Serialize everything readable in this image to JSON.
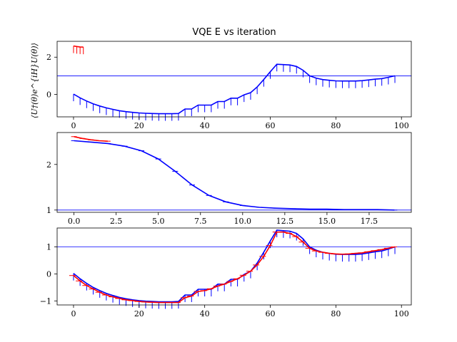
{
  "chart_data": [
    {
      "type": "line",
      "title": "VQE E vs iteration",
      "ylabel": "⟨U†(θ)e^{iH}U(θ)⟩",
      "xlim": [
        -5,
        103
      ],
      "ylim": [
        -1.2,
        2.85
      ],
      "xticks": [
        0,
        20,
        40,
        60,
        80,
        100
      ],
      "yticks": [
        0,
        2
      ],
      "hline": 1.0,
      "series": [
        {
          "color": "#0000ff",
          "x": [
            0,
            2,
            4,
            6,
            8,
            10,
            12,
            14,
            16,
            18,
            20,
            22,
            24,
            26,
            28,
            30,
            32,
            34,
            36,
            38,
            40,
            42,
            44,
            46,
            48,
            50,
            52,
            54,
            56,
            58,
            60,
            62,
            64,
            66,
            68,
            70,
            72,
            74,
            76,
            78,
            80,
            82,
            84,
            86,
            88,
            90,
            92,
            94,
            96,
            98
          ],
          "y": [
            0.02,
            -0.18,
            -0.35,
            -0.5,
            -0.62,
            -0.72,
            -0.8,
            -0.87,
            -0.92,
            -0.96,
            -0.99,
            -1.01,
            -1.02,
            -1.03,
            -1.03,
            -1.03,
            -1.02,
            -0.78,
            -0.78,
            -0.57,
            -0.57,
            -0.57,
            -0.38,
            -0.38,
            -0.2,
            -0.2,
            -0.02,
            0.1,
            0.4,
            0.8,
            1.22,
            1.62,
            1.6,
            1.58,
            1.5,
            1.3,
            1.0,
            0.88,
            0.8,
            0.76,
            0.73,
            0.72,
            0.72,
            0.72,
            0.74,
            0.78,
            0.82,
            0.85,
            0.92,
            1.0
          ]
        },
        {
          "color": "#ff0000",
          "x": [
            0,
            1,
            2,
            3
          ],
          "y": [
            2.6,
            2.57,
            2.55,
            2.54
          ]
        }
      ]
    },
    {
      "type": "line",
      "xlim": [
        -1,
        20
      ],
      "ylim": [
        0.95,
        2.7
      ],
      "xticks": [
        0.0,
        2.5,
        5.0,
        7.5,
        10.0,
        12.5,
        15.0,
        17.5
      ],
      "xtick_labels": [
        "0.0",
        "2.5",
        "5.0",
        "7.5",
        "10.0",
        "12.5",
        "15.0",
        "17.5"
      ],
      "yticks": [
        1,
        2
      ],
      "hline": 1.0,
      "series": [
        {
          "color": "#0000ff",
          "x": [
            0,
            1,
            2,
            3,
            4,
            5,
            6,
            7,
            8,
            9,
            10,
            11,
            12,
            13,
            14,
            15,
            16,
            17,
            18,
            19
          ],
          "y": [
            2.52,
            2.49,
            2.46,
            2.4,
            2.3,
            2.12,
            1.85,
            1.55,
            1.32,
            1.18,
            1.1,
            1.06,
            1.04,
            1.03,
            1.02,
            1.02,
            1.01,
            1.01,
            1.01,
            1.0
          ]
        },
        {
          "color": "#ff0000",
          "x": [
            0,
            0.5,
            1.0,
            1.5,
            2.0
          ],
          "y": [
            2.61,
            2.57,
            2.54,
            2.52,
            2.51
          ]
        }
      ]
    },
    {
      "type": "line",
      "xlim": [
        -5,
        103
      ],
      "ylim": [
        -1.15,
        1.7
      ],
      "xticks": [
        0,
        20,
        40,
        60,
        80,
        100
      ],
      "yticks": [
        -1,
        0,
        1
      ],
      "hline": 1.0,
      "series": [
        {
          "color": "#0000ff",
          "x": [
            0,
            2,
            4,
            6,
            8,
            10,
            12,
            14,
            16,
            18,
            20,
            22,
            24,
            26,
            28,
            30,
            32,
            34,
            36,
            38,
            40,
            42,
            44,
            46,
            48,
            50,
            52,
            54,
            56,
            58,
            60,
            62,
            64,
            66,
            68,
            70,
            72,
            74,
            76,
            78,
            80,
            82,
            84,
            86,
            88,
            90,
            92,
            94,
            96,
            98
          ],
          "y": [
            0.02,
            -0.18,
            -0.35,
            -0.5,
            -0.62,
            -0.72,
            -0.8,
            -0.87,
            -0.92,
            -0.96,
            -0.99,
            -1.01,
            -1.02,
            -1.03,
            -1.03,
            -1.03,
            -1.02,
            -0.78,
            -0.78,
            -0.57,
            -0.57,
            -0.57,
            -0.38,
            -0.38,
            -0.2,
            -0.2,
            -0.02,
            0.1,
            0.4,
            0.8,
            1.22,
            1.62,
            1.6,
            1.58,
            1.5,
            1.3,
            1.0,
            0.88,
            0.8,
            0.76,
            0.73,
            0.72,
            0.72,
            0.72,
            0.74,
            0.78,
            0.82,
            0.85,
            0.92,
            1.0
          ]
        },
        {
          "color": "#ff0000",
          "x": [
            0,
            2,
            4,
            6,
            8,
            10,
            12,
            14,
            16,
            18,
            20,
            22,
            24,
            26,
            28,
            30,
            32,
            34,
            36,
            38,
            40,
            42,
            44,
            46,
            48,
            50,
            52,
            54,
            56,
            58,
            60,
            62,
            64,
            66,
            68,
            70,
            72,
            74,
            76,
            78,
            80,
            82,
            84,
            86,
            88,
            90,
            92,
            94,
            96,
            98
          ],
          "y": [
            -0.06,
            -0.26,
            -0.43,
            -0.56,
            -0.68,
            -0.78,
            -0.85,
            -0.91,
            -0.96,
            -0.99,
            -1.02,
            -1.04,
            -1.05,
            -1.06,
            -1.06,
            -1.06,
            -1.06,
            -0.88,
            -0.82,
            -0.65,
            -0.62,
            -0.55,
            -0.45,
            -0.38,
            -0.28,
            -0.18,
            -0.05,
            0.1,
            0.33,
            0.65,
            1.05,
            1.55,
            1.55,
            1.5,
            1.38,
            1.18,
            0.95,
            0.85,
            0.8,
            0.76,
            0.74,
            0.73,
            0.74,
            0.76,
            0.78,
            0.82,
            0.86,
            0.9,
            0.95,
            1.0
          ]
        }
      ]
    }
  ]
}
